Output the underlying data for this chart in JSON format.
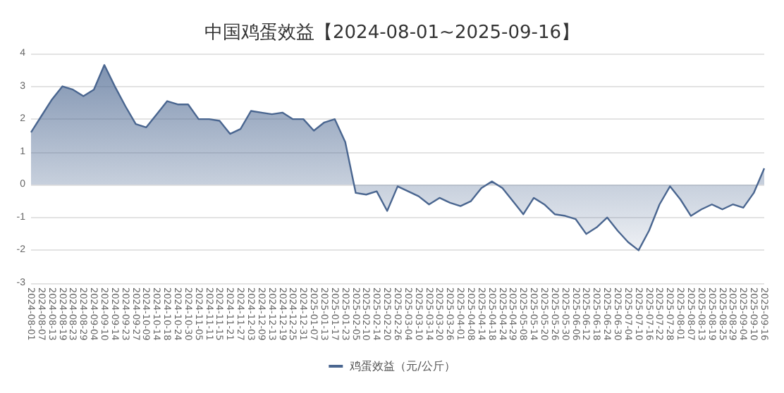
{
  "chart_data": {
    "type": "area",
    "title": "中国鸡蛋效益【2024-08-01~2025-09-16】",
    "categories": [
      "2024-08-01",
      "2024-08-07",
      "2024-08-13",
      "2024-08-19",
      "2024-08-23",
      "2024-08-29",
      "2024-09-04",
      "2024-09-10",
      "2024-09-14",
      "2024-09-23",
      "2024-09-27",
      "2024-10-09",
      "2024-10-14",
      "2024-10-18",
      "2024-10-24",
      "2024-10-30",
      "2024-11-05",
      "2024-11-11",
      "2024-11-15",
      "2024-11-21",
      "2024-11-27",
      "2024-12-03",
      "2024-12-09",
      "2024-12-13",
      "2024-12-19",
      "2024-12-25",
      "2024-12-31",
      "2025-01-07",
      "2025-01-13",
      "2025-01-17",
      "2025-01-23",
      "2025-02-05",
      "2025-02-10",
      "2025-02-14",
      "2025-02-20",
      "2025-02-26",
      "2025-03-04",
      "2025-03-10",
      "2025-03-14",
      "2025-03-20",
      "2025-03-26",
      "2025-04-01",
      "2025-04-08",
      "2025-04-14",
      "2025-04-18",
      "2025-04-24",
      "2025-04-29",
      "2025-05-08",
      "2025-05-14",
      "2025-05-20",
      "2025-05-26",
      "2025-05-30",
      "2025-06-06",
      "2025-06-12",
      "2025-06-18",
      "2025-06-24",
      "2025-06-30",
      "2025-07-04",
      "2025-07-10",
      "2025-07-16",
      "2025-07-22",
      "2025-07-28",
      "2025-08-01",
      "2025-08-07",
      "2025-08-13",
      "2025-08-19",
      "2025-08-25",
      "2025-08-29",
      "2025-09-04",
      "2025-09-10",
      "2025-09-16"
    ],
    "series": [
      {
        "name": "鸡蛋效益（元/公斤）",
        "color": "#4a6690",
        "values": [
          1.6,
          2.1,
          2.6,
          3.0,
          2.9,
          2.7,
          2.9,
          3.65,
          3.0,
          2.4,
          1.85,
          1.75,
          2.15,
          2.55,
          2.45,
          2.45,
          2.0,
          2.0,
          1.95,
          1.55,
          1.7,
          2.25,
          2.2,
          2.15,
          2.2,
          2.0,
          2.0,
          1.65,
          1.9,
          2.0,
          1.3,
          -0.25,
          -0.3,
          -0.2,
          -0.8,
          -0.05,
          -0.2,
          -0.35,
          -0.6,
          -0.4,
          -0.55,
          -0.65,
          -0.5,
          -0.1,
          0.1,
          -0.1,
          -0.5,
          -0.9,
          -0.4,
          -0.6,
          -0.9,
          -0.95,
          -1.05,
          -1.5,
          -1.3,
          -1.0,
          -1.4,
          -1.75,
          -2.0,
          -1.4,
          -0.6,
          -0.05,
          -0.45,
          -0.95,
          -0.75,
          -0.6,
          -0.75,
          -0.6,
          -0.7,
          -0.25,
          0.5
        ]
      }
    ],
    "ylim": [
      -3,
      4
    ],
    "yticks": [
      -3,
      -2,
      -1,
      0,
      1,
      2,
      3,
      4
    ],
    "grid": "y",
    "legend": "bottom"
  }
}
